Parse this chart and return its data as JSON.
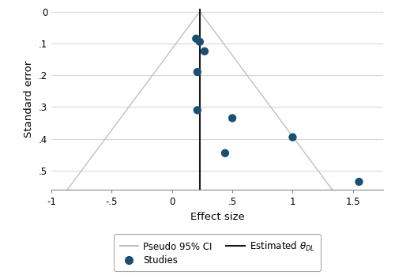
{
  "study_points": [
    {
      "effect_size": 0.2,
      "std_error": 0.085
    },
    {
      "effect_size": 0.23,
      "std_error": 0.095
    },
    {
      "effect_size": 0.27,
      "std_error": 0.125
    },
    {
      "effect_size": 0.21,
      "std_error": 0.19
    },
    {
      "effect_size": 0.21,
      "std_error": 0.31
    },
    {
      "effect_size": 0.5,
      "std_error": 0.335
    },
    {
      "effect_size": 0.44,
      "std_error": 0.445
    },
    {
      "effect_size": 1.0,
      "std_error": 0.395
    },
    {
      "effect_size": 1.55,
      "std_error": 0.535
    }
  ],
  "estimated_theta": 0.23,
  "point_color": "#1a4f72",
  "ci_line_color": "#c0c0c0",
  "theta_line_color": "#1a1a1a",
  "xlim": [
    -1.0,
    1.75
  ],
  "ylim": [
    0.56,
    -0.01
  ],
  "xticks": [
    -1,
    -0.5,
    0,
    0.5,
    1,
    1.5
  ],
  "xticklabels": [
    "-1",
    "-.5",
    "0",
    ".5",
    "1",
    "1.5"
  ],
  "yticks": [
    0,
    0.1,
    0.2,
    0.3,
    0.4,
    0.5
  ],
  "yticklabels": [
    "0",
    ".1",
    ".2",
    ".3",
    ".4",
    ".5"
  ],
  "xlabel": "Effect size",
  "ylabel": "Standard error",
  "background_color": "#ffffff",
  "grid_color": "#d8d8d8",
  "point_size": 55,
  "legend_ci_label": "Pseudo 95% CI",
  "legend_studies_label": "Studies",
  "legend_theta_label": "Estimated $\\theta_{DL}$"
}
